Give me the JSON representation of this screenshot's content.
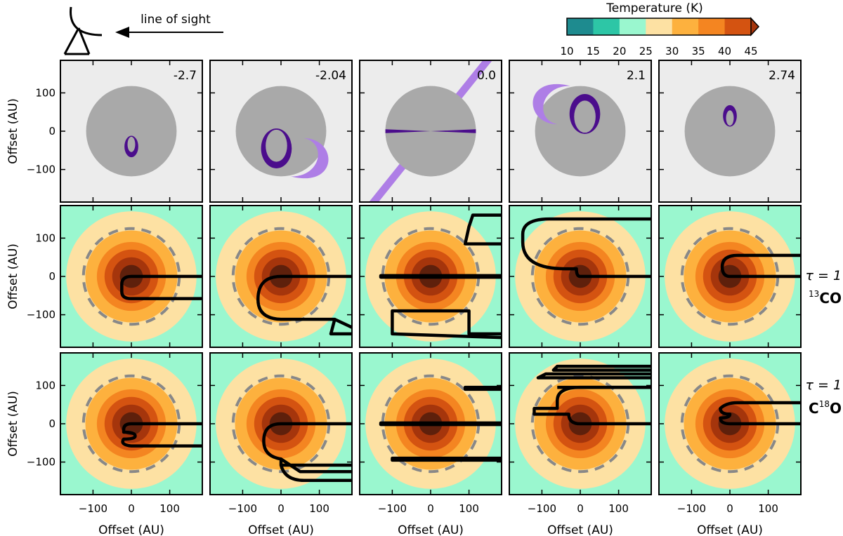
{
  "figure": {
    "los_label": "line of sight",
    "colorbar": {
      "title": "Temperature (K)",
      "ticks": [
        "10",
        "15",
        "20",
        "25",
        "30",
        "35",
        "40",
        "45"
      ],
      "colors": [
        "#1e8b8f",
        "#2dc6a6",
        "#9af7cf",
        "#fde1a3",
        "#fdb13e",
        "#f48521",
        "#d45311",
        "#a5350c"
      ]
    },
    "rows": {
      "r2_tau": "τ = 1",
      "r2_iso_sup": "13",
      "r2_iso_main": "CO",
      "r3_tau": "τ = 1",
      "r3_iso_c": "C",
      "r3_iso_sup": "18",
      "r3_iso_o": "O"
    },
    "axis_label": "Offset (AU)",
    "ytick_labels": [
      "100",
      "0",
      "−100"
    ],
    "xtick_labels": [
      "−100",
      "0",
      "100"
    ],
    "panel_labels": [
      "-2.7",
      "-2.04",
      "0.0",
      "2.1",
      "2.74"
    ],
    "palette": {
      "panel_bg": "#ececec",
      "disk": "#a9a9a9",
      "emission": "#4b0d8c",
      "ring": "#ae7ee6",
      "outside": "#9af7cf",
      "dashed_circle": "#888888",
      "contour": "#000000"
    }
  },
  "chart_data": {
    "type": "contour",
    "layout": "3 rows x 5 columns",
    "panel_values": [
      -2.7,
      -2.04,
      0.0,
      2.1,
      2.74
    ],
    "x_range": [
      -185,
      185
    ],
    "y_range": [
      -185,
      185
    ],
    "xlabel": "Offset (AU)",
    "ylabel": "Offset (AU)",
    "ticks": [
      -100,
      0,
      100
    ],
    "temperature_levels_K": [
      10,
      15,
      20,
      25,
      30,
      35,
      40,
      45
    ],
    "temperature_contour_radii_AU": [
      170,
      120,
      90,
      70,
      50,
      30
    ],
    "dashed_circle_radius_AU": 125,
    "rows": [
      "emission region",
      "tau = 1 surface 13CO",
      "tau = 1 surface C18O"
    ]
  }
}
